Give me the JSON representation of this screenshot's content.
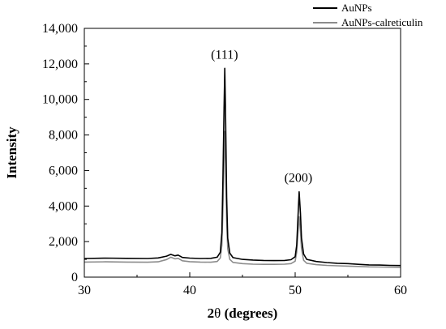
{
  "chart_data": {
    "type": "line",
    "title": "",
    "xlabel_symbol": "2",
    "xlabel_theta": "θ",
    "xlabel_rest": " (degrees)",
    "ylabel": "Intensity",
    "xlim": [
      30,
      60
    ],
    "ylim": [
      0,
      14000
    ],
    "x_ticks": [
      30,
      40,
      50,
      60
    ],
    "y_ticks": [
      0,
      2000,
      4000,
      6000,
      8000,
      10000,
      12000,
      14000
    ],
    "x_tick_labels": [
      "30",
      "40",
      "50",
      "60"
    ],
    "y_tick_labels": [
      "0",
      "2,000",
      "4,000",
      "6,000",
      "8,000",
      "10,000",
      "12,000",
      "14,000"
    ],
    "legend_position": "top-right",
    "annotations": [
      {
        "text": "(111)",
        "x": 43.3,
        "y": 12300
      },
      {
        "text": "(200)",
        "x": 50.3,
        "y": 5350
      }
    ],
    "series": [
      {
        "name": "AuNPs",
        "color": "#000000",
        "points": [
          [
            30,
            1050
          ],
          [
            32,
            1070
          ],
          [
            34,
            1060
          ],
          [
            36,
            1050
          ],
          [
            37,
            1080
          ],
          [
            37.8,
            1180
          ],
          [
            38.2,
            1280
          ],
          [
            38.6,
            1200
          ],
          [
            38.9,
            1240
          ],
          [
            39.3,
            1110
          ],
          [
            40,
            1070
          ],
          [
            41,
            1050
          ],
          [
            42,
            1060
          ],
          [
            42.6,
            1120
          ],
          [
            42.9,
            1400
          ],
          [
            43.05,
            2500
          ],
          [
            43.15,
            5500
          ],
          [
            43.25,
            9500
          ],
          [
            43.32,
            11750
          ],
          [
            43.4,
            9000
          ],
          [
            43.5,
            4500
          ],
          [
            43.6,
            2200
          ],
          [
            43.8,
            1350
          ],
          [
            44.1,
            1100
          ],
          [
            45,
            1000
          ],
          [
            46,
            960
          ],
          [
            47,
            940
          ],
          [
            48,
            930
          ],
          [
            49,
            940
          ],
          [
            49.6,
            980
          ],
          [
            50,
            1150
          ],
          [
            50.15,
            1800
          ],
          [
            50.25,
            3200
          ],
          [
            50.38,
            4800
          ],
          [
            50.5,
            3600
          ],
          [
            50.6,
            2200
          ],
          [
            50.8,
            1300
          ],
          [
            51.1,
            1000
          ],
          [
            52,
            880
          ],
          [
            53,
            820
          ],
          [
            54,
            780
          ],
          [
            55,
            760
          ],
          [
            56,
            720
          ],
          [
            57,
            690
          ],
          [
            58,
            680
          ],
          [
            59,
            660
          ],
          [
            60,
            650
          ]
        ]
      },
      {
        "name": "AuNPs-calreticulin",
        "color": "#8c8c8c",
        "points": [
          [
            30,
            850
          ],
          [
            32,
            860
          ],
          [
            34,
            850
          ],
          [
            36,
            840
          ],
          [
            37,
            860
          ],
          [
            37.8,
            990
          ],
          [
            38.2,
            1120
          ],
          [
            38.6,
            1030
          ],
          [
            38.9,
            1060
          ],
          [
            39.3,
            920
          ],
          [
            40,
            870
          ],
          [
            41,
            850
          ],
          [
            42,
            840
          ],
          [
            42.6,
            880
          ],
          [
            42.9,
            1080
          ],
          [
            43.05,
            1800
          ],
          [
            43.15,
            3800
          ],
          [
            43.25,
            6500
          ],
          [
            43.32,
            8200
          ],
          [
            43.4,
            6400
          ],
          [
            43.5,
            3200
          ],
          [
            43.6,
            1600
          ],
          [
            43.8,
            1000
          ],
          [
            44.1,
            830
          ],
          [
            45,
            760
          ],
          [
            46,
            730
          ],
          [
            47,
            720
          ],
          [
            48,
            720
          ],
          [
            49,
            730
          ],
          [
            49.6,
            760
          ],
          [
            50,
            900
          ],
          [
            50.15,
            1400
          ],
          [
            50.25,
            2400
          ],
          [
            50.38,
            3400
          ],
          [
            50.5,
            2600
          ],
          [
            50.6,
            1600
          ],
          [
            50.8,
            950
          ],
          [
            51.1,
            780
          ],
          [
            52,
            700
          ],
          [
            53,
            660
          ],
          [
            54,
            640
          ],
          [
            55,
            620
          ],
          [
            56,
            600
          ],
          [
            57,
            580
          ],
          [
            58,
            570
          ],
          [
            59,
            560
          ],
          [
            60,
            550
          ]
        ]
      }
    ]
  }
}
